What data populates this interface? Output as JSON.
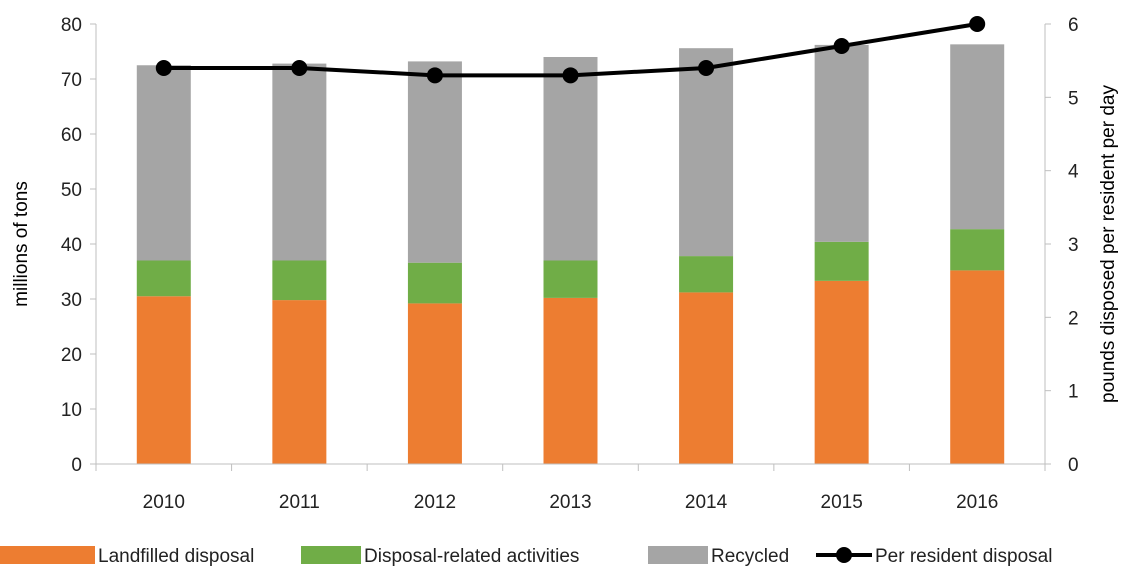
{
  "chart_data": {
    "type": "bar",
    "stacked": true,
    "categories": [
      "2010",
      "2011",
      "2012",
      "2013",
      "2014",
      "2015",
      "2016"
    ],
    "series": [
      {
        "name": "Landfilled disposal",
        "values": [
          30.5,
          29.8,
          29.2,
          30.2,
          31.2,
          33.3,
          35.2
        ],
        "color": "#ED7D31",
        "axis": "left"
      },
      {
        "name": "Disposal-related activities",
        "values": [
          6.5,
          7.2,
          7.4,
          6.8,
          6.6,
          7.1,
          7.5
        ],
        "color": "#70AD47",
        "axis": "left"
      },
      {
        "name": "Recycled",
        "values": [
          35.5,
          35.8,
          36.6,
          37.0,
          37.8,
          35.8,
          33.6
        ],
        "color": "#A5A5A5",
        "axis": "left"
      },
      {
        "name": "Per resident disposal",
        "type": "line",
        "values": [
          5.4,
          5.4,
          5.3,
          5.3,
          5.4,
          5.7,
          6.0
        ],
        "color": "#000000",
        "axis": "right"
      }
    ],
    "title": "",
    "xlabel": "",
    "ylabel": "millions of tons",
    "y2label": "pounds disposed per resident per day",
    "ylim": [
      0,
      80
    ],
    "y2lim": [
      0,
      6
    ],
    "yticks": [
      "0",
      "10",
      "20",
      "30",
      "40",
      "50",
      "60",
      "70",
      "80"
    ],
    "y2ticks": [
      "0",
      "1",
      "2",
      "3",
      "4",
      "5",
      "6"
    ],
    "grid": false,
    "legend": "bottom"
  }
}
